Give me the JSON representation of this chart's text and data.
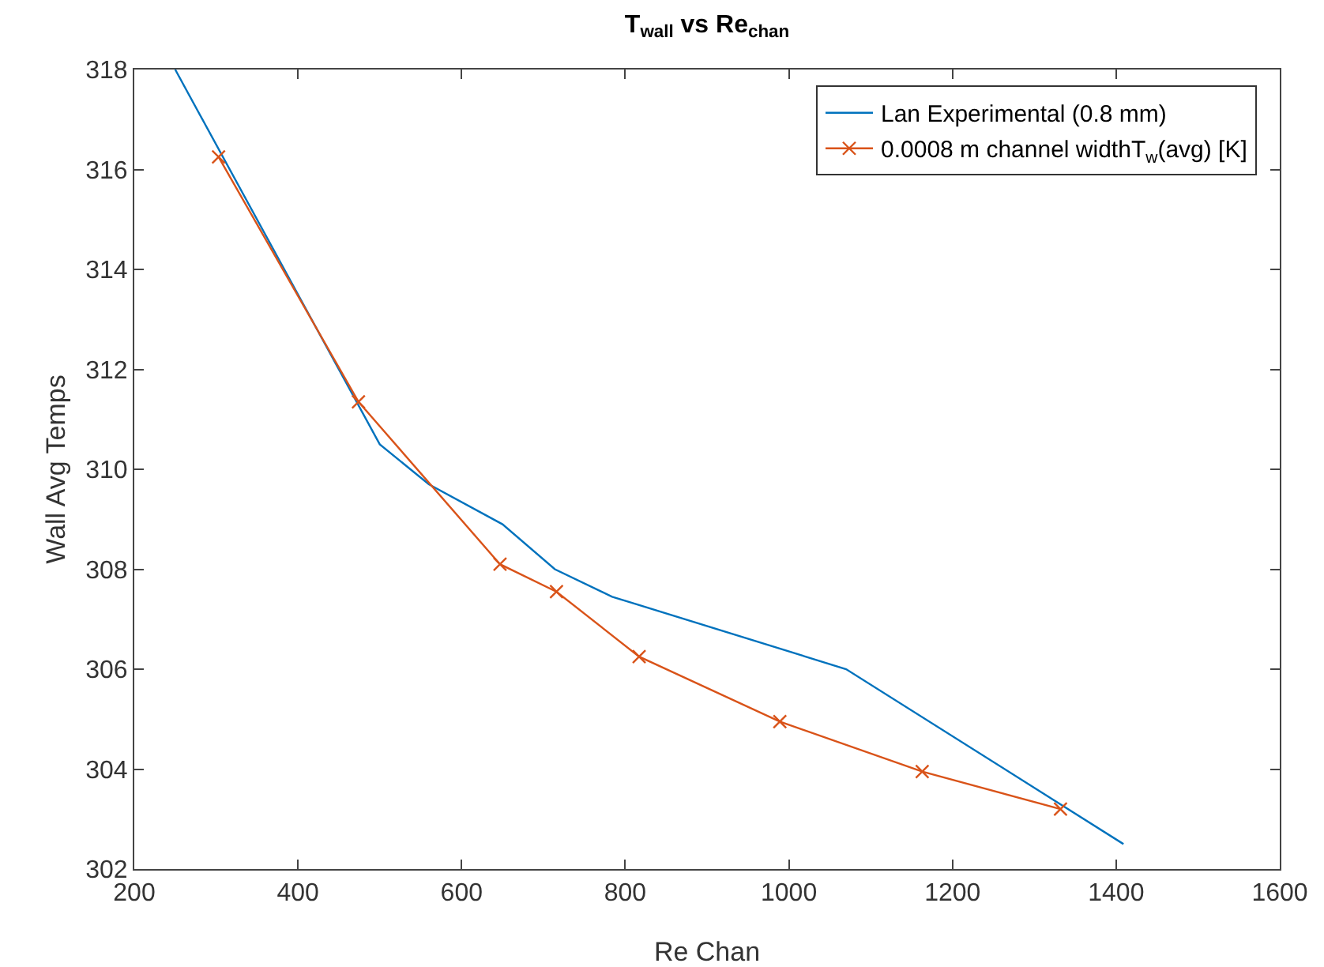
{
  "chart_data": {
    "type": "line",
    "title": "T$_{wall}$ vs Re$_{chan}$",
    "xlabel": "Re Chan",
    "ylabel": "Wall Avg Temps",
    "xlim": [
      200,
      1600
    ],
    "xticks": [
      200,
      400,
      600,
      800,
      1000,
      1200,
      1400,
      1600
    ],
    "ylim": [
      302,
      318
    ],
    "yticks": [
      302,
      304,
      306,
      308,
      310,
      312,
      314,
      316,
      318
    ],
    "grid": false,
    "legend": "top right",
    "series": [
      {
        "name": "Lan Experimental (0.8 mm)",
        "color": "#0072bd",
        "marker": "none",
        "x": [
          250,
          500,
          560,
          650,
          714,
          784,
          1070,
          1409
        ],
        "values": [
          318,
          310.5,
          309.7,
          308.9,
          308,
          307.45,
          306,
          302.5
        ]
      },
      {
        "name": "0.0008 m channel widthT$_{w}$(avg) [K]",
        "color": "#d95319",
        "marker": "cross",
        "x": [
          303,
          474,
          647,
          716,
          817,
          989,
          1163,
          1332
        ],
        "values": [
          316.25,
          311.35,
          308.1,
          307.55,
          306.25,
          304.95,
          303.95,
          303.2
        ]
      }
    ]
  }
}
